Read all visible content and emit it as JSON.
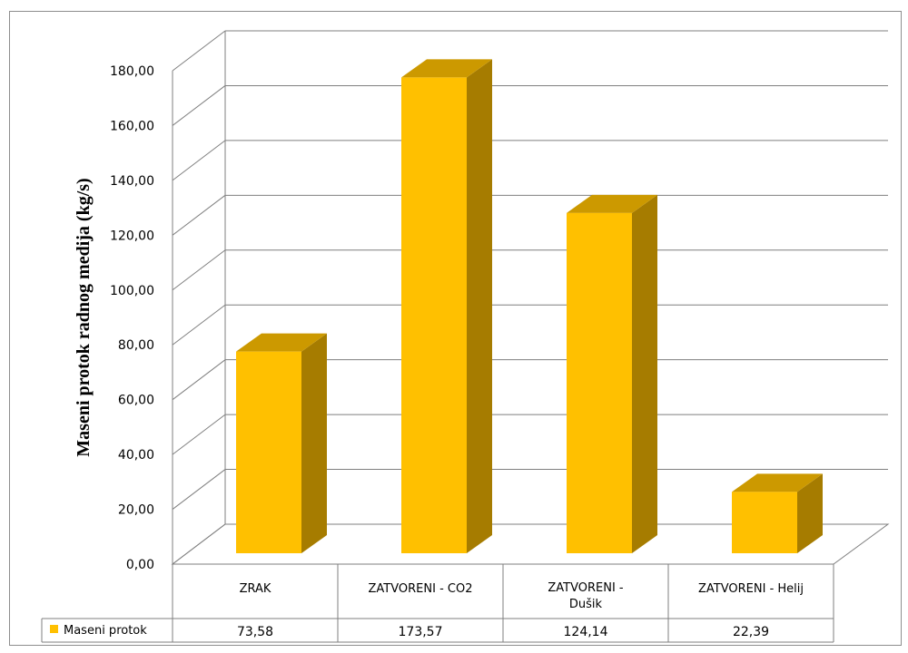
{
  "chart_data": {
    "type": "bar",
    "categories": [
      [
        "ZRAK"
      ],
      [
        "ZATVORENI - CO2"
      ],
      [
        "ZATVORENI -",
        "Dušik"
      ],
      [
        "ZATVORENI - Helij"
      ]
    ],
    "series": [
      {
        "name": "Maseni protok",
        "values": [
          73.58,
          173.57,
          124.14,
          22.39
        ],
        "value_labels": [
          "73,58",
          "173,57",
          "124,14",
          "22,39"
        ]
      }
    ],
    "ylabel": "Maseni protok radnog medija (kg/s)",
    "ylim": [
      0,
      180
    ],
    "yticks": [
      "0,00",
      "20,00",
      "40,00",
      "60,00",
      "80,00",
      "100,00",
      "120,00",
      "140,00",
      "160,00",
      "180,00"
    ],
    "grid": true,
    "legend": "data-table",
    "colors": {
      "bar_front": "#FFC000",
      "bar_top": "#CC9900",
      "bar_side": "#A67C00",
      "grid": "#7f7f7f"
    }
  }
}
